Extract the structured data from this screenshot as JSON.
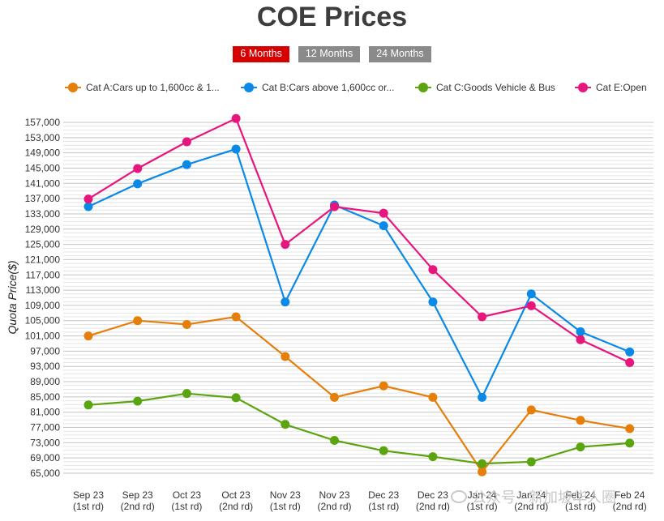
{
  "title": "COE Prices",
  "range_tabs": [
    {
      "label": "6 Months",
      "active": true
    },
    {
      "label": "12 Months",
      "active": false
    },
    {
      "label": "24 Months",
      "active": false
    }
  ],
  "watermark": "公众号 · 新加坡华人圈",
  "chart_data": {
    "type": "line",
    "title": "COE Prices",
    "ylabel": "Quota Price($)",
    "xlabel": "",
    "ylim": [
      65000,
      157000
    ],
    "y_ticks": [
      65000,
      69000,
      73000,
      77000,
      81000,
      85000,
      89000,
      93000,
      97000,
      101000,
      105000,
      109000,
      113000,
      117000,
      121000,
      125000,
      129000,
      133000,
      137000,
      141000,
      145000,
      149000,
      153000,
      157000
    ],
    "y_tick_labels": [
      "65,000",
      "69,000",
      "73,000",
      "77,000",
      "81,000",
      "85,000",
      "89,000",
      "93,000",
      "97,000",
      "101,000",
      "105,000",
      "109,000",
      "113,000",
      "117,000",
      "121,000",
      "125,000",
      "129,000",
      "133,000",
      "137,000",
      "141,000",
      "145,000",
      "149,000",
      "153,000",
      "157,000"
    ],
    "categories": [
      [
        "Sep 23",
        "(1st rd)"
      ],
      [
        "Sep 23",
        "(2nd rd)"
      ],
      [
        "Oct 23",
        "(1st rd)"
      ],
      [
        "Oct 23",
        "(2nd rd)"
      ],
      [
        "Nov 23",
        "(1st rd)"
      ],
      [
        "Nov 23",
        "(2nd rd)"
      ],
      [
        "Dec 23",
        "(1st rd)"
      ],
      [
        "Dec 23",
        "(2nd rd)"
      ],
      [
        "Jan 24",
        "(1st rd)"
      ],
      [
        "Jan 24",
        "(2nd rd)"
      ],
      [
        "Feb 24",
        "(1st rd)"
      ],
      [
        "Feb 24",
        "(2nd rd)"
      ]
    ],
    "legend_position": "top",
    "grid": true,
    "series": [
      {
        "name": "Cat A:Cars up to 1,600cc & 1...",
        "color": "#e67e0a",
        "values": [
          100989,
          105000,
          104001,
          106000,
          95590,
          84901,
          87889,
          84889,
          65340,
          81589,
          78861,
          76690
        ]
      },
      {
        "name": "Cat B:Cars above 1,600cc or...",
        "color": "#0a8ae6",
        "values": [
          134900,
          140889,
          145914,
          150001,
          109899,
          135336,
          129889,
          109910,
          84889,
          112001,
          102101,
          96801
        ]
      },
      {
        "name": "Cat C:Goods Vehicle & Bus",
        "color": "#5aa410",
        "values": [
          82889,
          83889,
          85889,
          84789,
          77801,
          73601,
          70889,
          69331,
          67500,
          67990,
          71889,
          72889
        ]
      },
      {
        "name": "Cat E:Open",
        "color": "#e6167e",
        "values": [
          136890,
          144889,
          151911,
          158004,
          124989,
          134889,
          133189,
          118389,
          106001,
          108899,
          100000,
          94010
        ]
      }
    ]
  }
}
